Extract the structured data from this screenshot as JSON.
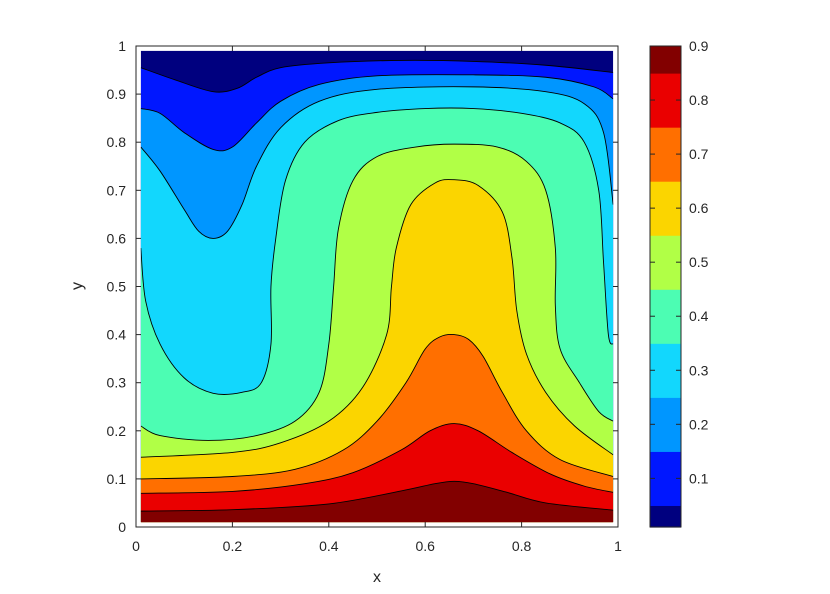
{
  "chart_data": {
    "type": "contourf",
    "title": "",
    "xlabel": "x",
    "ylabel": "y",
    "xlim": [
      0,
      1
    ],
    "ylim": [
      0,
      1
    ],
    "x_ticks": [
      "0",
      "0.2",
      "0.4",
      "0.6",
      "0.8",
      "1"
    ],
    "y_ticks": [
      "0",
      "0.1",
      "0.2",
      "0.3",
      "0.4",
      "0.5",
      "0.6",
      "0.7",
      "0.8",
      "0.9",
      "1"
    ],
    "colormap": "jet",
    "colorbar": {
      "range": [
        0.01,
        0.9
      ],
      "ticks": [
        "0.1",
        "0.2",
        "0.3",
        "0.4",
        "0.5",
        "0.6",
        "0.7",
        "0.8",
        "0.9"
      ]
    },
    "domain_x": [
      0.01,
      0.99
    ],
    "domain_y": [
      0.01,
      0.99
    ],
    "levels": [
      0.05,
      0.15,
      0.25,
      0.35,
      0.45,
      0.55,
      0.65,
      0.75,
      0.85
    ],
    "band_colors": [
      "#00007f",
      "#0017ff",
      "#0096ff",
      "#12d7fd",
      "#4cfdb3",
      "#b1ff46",
      "#fbd500",
      "#ff6f00",
      "#ea0000",
      "#820000"
    ],
    "contour_lines": [
      {
        "level": 0.85,
        "points": [
          [
            0.01,
            0.033
          ],
          [
            0.2,
            0.036
          ],
          [
            0.4,
            0.048
          ],
          [
            0.55,
            0.075
          ],
          [
            0.62,
            0.09
          ],
          [
            0.66,
            0.095
          ],
          [
            0.7,
            0.09
          ],
          [
            0.77,
            0.072
          ],
          [
            0.85,
            0.05
          ],
          [
            0.99,
            0.035
          ]
        ]
      },
      {
        "level": 0.75,
        "points": [
          [
            0.01,
            0.07
          ],
          [
            0.2,
            0.074
          ],
          [
            0.35,
            0.09
          ],
          [
            0.45,
            0.113
          ],
          [
            0.55,
            0.16
          ],
          [
            0.61,
            0.2
          ],
          [
            0.66,
            0.215
          ],
          [
            0.71,
            0.2
          ],
          [
            0.78,
            0.155
          ],
          [
            0.86,
            0.11
          ],
          [
            0.93,
            0.085
          ],
          [
            0.99,
            0.072
          ]
        ]
      },
      {
        "level": 0.65,
        "points": [
          [
            0.01,
            0.1
          ],
          [
            0.2,
            0.105
          ],
          [
            0.33,
            0.12
          ],
          [
            0.43,
            0.16
          ],
          [
            0.5,
            0.22
          ],
          [
            0.56,
            0.3
          ],
          [
            0.6,
            0.37
          ],
          [
            0.63,
            0.395
          ],
          [
            0.66,
            0.4
          ],
          [
            0.69,
            0.39
          ],
          [
            0.72,
            0.355
          ],
          [
            0.76,
            0.28
          ],
          [
            0.81,
            0.2
          ],
          [
            0.88,
            0.14
          ],
          [
            0.99,
            0.105
          ]
        ]
      },
      {
        "level": 0.55,
        "points": [
          [
            0.01,
            0.145
          ],
          [
            0.2,
            0.155
          ],
          [
            0.3,
            0.175
          ],
          [
            0.4,
            0.22
          ],
          [
            0.47,
            0.29
          ],
          [
            0.52,
            0.4
          ],
          [
            0.53,
            0.5
          ],
          [
            0.54,
            0.58
          ],
          [
            0.57,
            0.67
          ],
          [
            0.62,
            0.715
          ],
          [
            0.66,
            0.722
          ],
          [
            0.71,
            0.71
          ],
          [
            0.76,
            0.655
          ],
          [
            0.78,
            0.56
          ],
          [
            0.79,
            0.45
          ],
          [
            0.81,
            0.36
          ],
          [
            0.85,
            0.28
          ],
          [
            0.91,
            0.21
          ],
          [
            0.99,
            0.15
          ]
        ]
      },
      {
        "level": 0.45,
        "points": [
          [
            0.01,
            0.21
          ],
          [
            0.05,
            0.19
          ],
          [
            0.15,
            0.18
          ],
          [
            0.25,
            0.19
          ],
          [
            0.33,
            0.22
          ],
          [
            0.38,
            0.28
          ],
          [
            0.4,
            0.38
          ],
          [
            0.41,
            0.5
          ],
          [
            0.42,
            0.62
          ],
          [
            0.45,
            0.72
          ],
          [
            0.5,
            0.77
          ],
          [
            0.58,
            0.79
          ],
          [
            0.66,
            0.796
          ],
          [
            0.75,
            0.79
          ],
          [
            0.81,
            0.76
          ],
          [
            0.85,
            0.7
          ],
          [
            0.87,
            0.58
          ],
          [
            0.87,
            0.46
          ],
          [
            0.88,
            0.37
          ],
          [
            0.92,
            0.3
          ],
          [
            0.96,
            0.24
          ],
          [
            0.99,
            0.22
          ]
        ]
      },
      {
        "level": 0.35,
        "points": [
          [
            0.01,
            0.58
          ],
          [
            0.02,
            0.47
          ],
          [
            0.05,
            0.38
          ],
          [
            0.1,
            0.31
          ],
          [
            0.16,
            0.278
          ],
          [
            0.22,
            0.28
          ],
          [
            0.26,
            0.3
          ],
          [
            0.28,
            0.38
          ],
          [
            0.28,
            0.5
          ],
          [
            0.29,
            0.6
          ],
          [
            0.31,
            0.72
          ],
          [
            0.35,
            0.8
          ],
          [
            0.42,
            0.845
          ],
          [
            0.5,
            0.862
          ],
          [
            0.6,
            0.87
          ],
          [
            0.7,
            0.87
          ],
          [
            0.8,
            0.86
          ],
          [
            0.88,
            0.84
          ],
          [
            0.93,
            0.8
          ],
          [
            0.96,
            0.7
          ],
          [
            0.97,
            0.55
          ],
          [
            0.98,
            0.4
          ],
          [
            0.99,
            0.38
          ]
        ]
      },
      {
        "level": 0.25,
        "points": [
          [
            0.01,
            0.79
          ],
          [
            0.05,
            0.74
          ],
          [
            0.1,
            0.66
          ],
          [
            0.13,
            0.615
          ],
          [
            0.16,
            0.6
          ],
          [
            0.19,
            0.615
          ],
          [
            0.22,
            0.67
          ],
          [
            0.25,
            0.75
          ],
          [
            0.3,
            0.83
          ],
          [
            0.38,
            0.885
          ],
          [
            0.5,
            0.91
          ],
          [
            0.7,
            0.915
          ],
          [
            0.85,
            0.905
          ],
          [
            0.93,
            0.88
          ],
          [
            0.97,
            0.82
          ],
          [
            0.99,
            0.67
          ]
        ]
      },
      {
        "level": 0.15,
        "points": [
          [
            0.01,
            0.87
          ],
          [
            0.05,
            0.86
          ],
          [
            0.1,
            0.82
          ],
          [
            0.16,
            0.785
          ],
          [
            0.2,
            0.79
          ],
          [
            0.25,
            0.84
          ],
          [
            0.3,
            0.885
          ],
          [
            0.38,
            0.92
          ],
          [
            0.5,
            0.938
          ],
          [
            0.7,
            0.94
          ],
          [
            0.85,
            0.935
          ],
          [
            0.95,
            0.915
          ],
          [
            0.99,
            0.89
          ]
        ]
      },
      {
        "level": 0.05,
        "points": [
          [
            0.01,
            0.955
          ],
          [
            0.08,
            0.93
          ],
          [
            0.16,
            0.905
          ],
          [
            0.21,
            0.912
          ],
          [
            0.25,
            0.935
          ],
          [
            0.3,
            0.955
          ],
          [
            0.4,
            0.965
          ],
          [
            0.55,
            0.97
          ],
          [
            0.7,
            0.968
          ],
          [
            0.85,
            0.96
          ],
          [
            0.99,
            0.945
          ]
        ]
      }
    ]
  }
}
